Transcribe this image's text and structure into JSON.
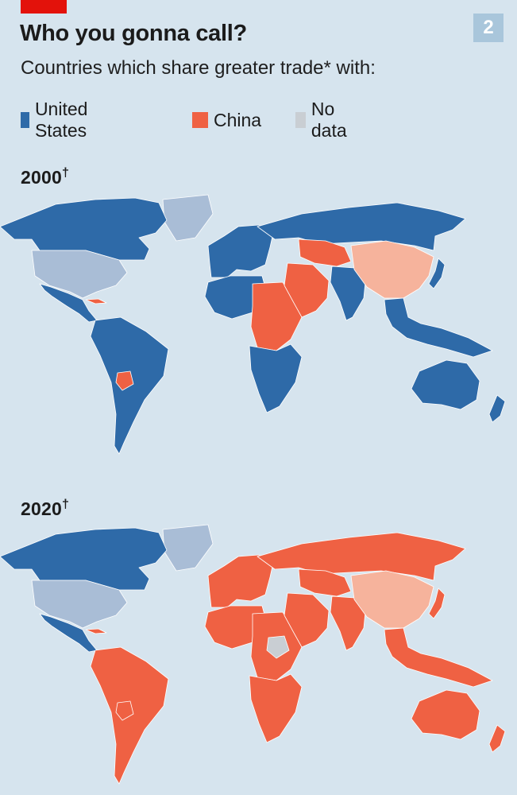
{
  "header": {
    "badge": "2",
    "title": "Who you gonna call?",
    "subtitle": "Countries which share greater trade* with:"
  },
  "legend": [
    {
      "label": "United States",
      "color": "#2e6aa8"
    },
    {
      "label": "China",
      "color": "#ef6143"
    },
    {
      "label": "No data",
      "color": "#c9ced3"
    }
  ],
  "colors": {
    "background": "#d6e4ee",
    "united_states": "#2e6aa8",
    "united_states_self": "#a9bdd6",
    "china": "#ef6143",
    "china_self": "#f6b39c",
    "no_data": "#c9ced3",
    "borders": "#ffffff",
    "brand_tab": "#e3120b"
  },
  "maps": [
    {
      "year": "2000",
      "marker": "†",
      "shares": {
        "north_america": "united_states",
        "united_states": "united_states_self",
        "greenland": "united_states_self",
        "central_america": "united_states",
        "cuba": "china",
        "south_america": "united_states",
        "paraguay": "china",
        "europe": "united_states",
        "russia": "united_states",
        "africa_west": "united_states",
        "africa_central": "china",
        "africa_south": "united_states",
        "middle_east": "china",
        "central_asia": "china",
        "india": "united_states",
        "china": "china_self",
        "southeast_asia": "united_states",
        "japan": "united_states",
        "australia": "united_states",
        "new_zealand": "united_states"
      }
    },
    {
      "year": "2020",
      "marker": "†",
      "shares": {
        "north_america": "united_states",
        "united_states": "united_states_self",
        "greenland": "united_states_self",
        "central_america": "united_states",
        "cuba": "china",
        "south_america": "china",
        "paraguay": "china",
        "europe": "china",
        "russia": "china",
        "africa_west": "china",
        "africa_central": "china",
        "africa_south": "china",
        "middle_east": "china",
        "central_asia": "china",
        "india": "china",
        "china": "china_self",
        "southeast_asia": "china",
        "japan": "china",
        "australia": "china",
        "new_zealand": "china",
        "sudan": "no_data"
      }
    }
  ]
}
